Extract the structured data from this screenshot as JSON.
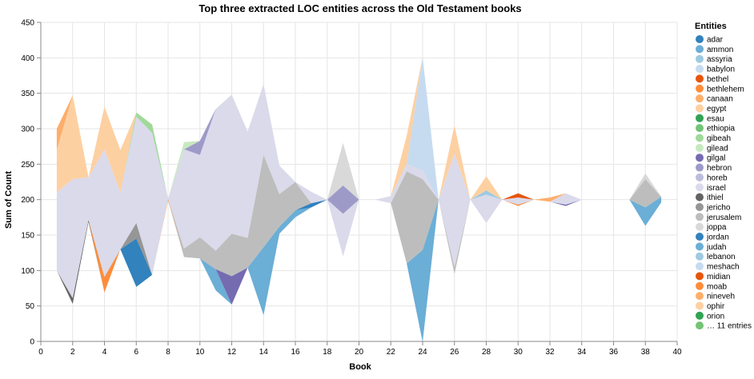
{
  "chart_data": {
    "type": "area",
    "title": "Top three extracted LOC entities across the Old Testament books",
    "xlabel": "Book",
    "ylabel": "Sum of Count",
    "xlim": [
      0,
      40
    ],
    "ylim": [
      0,
      450
    ],
    "x_ticks": [
      0,
      2,
      4,
      6,
      8,
      10,
      12,
      14,
      16,
      18,
      20,
      22,
      24,
      26,
      28,
      30,
      32,
      34,
      36,
      38,
      40
    ],
    "y_ticks": [
      0,
      50,
      100,
      150,
      200,
      250,
      300,
      350,
      400,
      450
    ],
    "grid": true,
    "stack": "center",
    "legend_position": "right",
    "legend_title": "Entities",
    "legend_entries": [
      {
        "label": "adar",
        "color": "#3182bd"
      },
      {
        "label": "ammon",
        "color": "#6baed6"
      },
      {
        "label": "assyria",
        "color": "#9ecae1"
      },
      {
        "label": "babylon",
        "color": "#c6dbef"
      },
      {
        "label": "bethel",
        "color": "#e6550d"
      },
      {
        "label": "bethlehem",
        "color": "#fd8d3c"
      },
      {
        "label": "canaan",
        "color": "#fdae6b"
      },
      {
        "label": "egypt",
        "color": "#fdd0a2"
      },
      {
        "label": "esau",
        "color": "#31a354"
      },
      {
        "label": "ethiopia",
        "color": "#74c476"
      },
      {
        "label": "gibeah",
        "color": "#a1d99b"
      },
      {
        "label": "gilead",
        "color": "#c7e9c0"
      },
      {
        "label": "gilgal",
        "color": "#756bb1"
      },
      {
        "label": "hebron",
        "color": "#9e9ac8"
      },
      {
        "label": "horeb",
        "color": "#bcbddc"
      },
      {
        "label": "israel",
        "color": "#dadaeb"
      },
      {
        "label": "ithiel",
        "color": "#636363"
      },
      {
        "label": "jericho",
        "color": "#969696"
      },
      {
        "label": "jerusalem",
        "color": "#bdbdbd"
      },
      {
        "label": "joppa",
        "color": "#d9d9d9"
      },
      {
        "label": "jordan",
        "color": "#3182bd"
      },
      {
        "label": "judah",
        "color": "#6baed6"
      },
      {
        "label": "lebanon",
        "color": "#9ecae1"
      },
      {
        "label": "meshach",
        "color": "#c6dbef"
      },
      {
        "label": "midian",
        "color": "#e6550d"
      },
      {
        "label": "moab",
        "color": "#fd8d3c"
      },
      {
        "label": "nineveh",
        "color": "#fdae6b"
      },
      {
        "label": "ophir",
        "color": "#fdd0a2"
      },
      {
        "label": "orion",
        "color": "#31a354"
      },
      {
        "label": "… 11 entries",
        "color": "#74c476"
      }
    ],
    "x": [
      1,
      2,
      3,
      4,
      5,
      6,
      7,
      8,
      9,
      10,
      11,
      12,
      13,
      14,
      15,
      16,
      17,
      18,
      19,
      20,
      21,
      22,
      23,
      24,
      25,
      26,
      27,
      28,
      29,
      30,
      31,
      32,
      33,
      34,
      35,
      36,
      37,
      38,
      39
    ],
    "series": [
      {
        "name": "ithiel",
        "color": "#636363",
        "values": [
          0,
          8,
          3,
          0,
          0,
          0,
          0,
          0,
          0,
          0,
          0,
          0,
          0,
          0,
          0,
          0,
          0,
          0,
          0,
          0,
          0,
          0,
          0,
          0,
          0,
          0,
          0,
          0,
          0,
          0,
          0,
          0,
          0,
          0,
          0,
          0,
          0,
          0,
          0
        ]
      },
      {
        "name": "moab",
        "color": "#fd8d3c",
        "values": [
          0,
          0,
          0,
          22,
          0,
          0,
          0,
          2,
          0,
          0,
          0,
          0,
          0,
          0,
          0,
          0,
          0,
          0,
          0,
          0,
          0,
          0,
          0,
          0,
          0,
          0,
          0,
          0,
          0,
          2,
          0,
          0,
          0,
          0,
          0,
          0,
          0,
          0,
          0
        ]
      },
      {
        "name": "judah",
        "color": "#6baed6",
        "values": [
          0,
          0,
          0,
          0,
          0,
          0,
          0,
          0,
          0,
          0,
          30,
          0,
          0,
          96,
          10,
          10,
          0,
          0,
          0,
          0,
          0,
          0,
          0,
          130,
          0,
          0,
          0,
          0,
          0,
          0,
          0,
          0,
          0,
          0,
          0,
          0,
          0,
          26,
          8
        ]
      },
      {
        "name": "jordan",
        "color": "#3182bd",
        "values": [
          0,
          0,
          0,
          0,
          0,
          68,
          0,
          0,
          0,
          0,
          0,
          0,
          0,
          0,
          0,
          0,
          6,
          0,
          0,
          0,
          0,
          0,
          0,
          0,
          0,
          0,
          0,
          0,
          0,
          0,
          0,
          0,
          0,
          0,
          0,
          0,
          0,
          0,
          0
        ]
      },
      {
        "name": "gilgal",
        "color": "#756bb1",
        "values": [
          0,
          0,
          0,
          0,
          0,
          0,
          0,
          0,
          0,
          0,
          0,
          40,
          0,
          0,
          0,
          0,
          0,
          0,
          0,
          0,
          0,
          0,
          0,
          0,
          0,
          0,
          0,
          0,
          0,
          0,
          0,
          0,
          2,
          0,
          0,
          0,
          0,
          0,
          0
        ]
      },
      {
        "name": "jericho",
        "color": "#969696",
        "values": [
          0,
          0,
          0,
          0,
          0,
          22,
          0,
          0,
          0,
          0,
          0,
          0,
          0,
          0,
          0,
          0,
          0,
          0,
          0,
          0,
          0,
          0,
          0,
          0,
          0,
          0,
          0,
          0,
          0,
          0,
          0,
          0,
          0,
          0,
          0,
          0,
          0,
          0,
          0
        ]
      },
      {
        "name": "jerusalem",
        "color": "#bdbdbd",
        "values": [
          0,
          0,
          0,
          0,
          0,
          0,
          0,
          0,
          12,
          30,
          26,
          60,
          42,
          130,
          46,
          40,
          0,
          0,
          0,
          0,
          0,
          0,
          130,
          100,
          0,
          10,
          0,
          0,
          0,
          0,
          0,
          0,
          0,
          0,
          0,
          0,
          0,
          40,
          0
        ]
      },
      {
        "name": "israel",
        "color": "#dadaeb",
        "values": [
          110,
          168,
          60,
          180,
          80,
          150,
          200,
          0,
          140,
          116,
          200,
          196,
          150,
          100,
          40,
          0,
          16,
          0,
          60,
          0,
          0,
          10,
          10,
          12,
          0,
          160,
          0,
          40,
          0,
          10,
          0,
          0,
          16,
          0,
          0,
          0,
          0,
          0,
          0
        ]
      },
      {
        "name": "hebron",
        "color": "#9e9ac8",
        "values": [
          0,
          0,
          0,
          0,
          0,
          0,
          0,
          0,
          0,
          20,
          0,
          0,
          0,
          0,
          0,
          0,
          0,
          0,
          40,
          0,
          0,
          0,
          0,
          0,
          0,
          0,
          0,
          0,
          0,
          0,
          0,
          0,
          0,
          0,
          0,
          0,
          0,
          0,
          0
        ]
      },
      {
        "name": "joppa",
        "color": "#d9d9d9",
        "values": [
          0,
          0,
          0,
          0,
          0,
          0,
          0,
          0,
          0,
          0,
          0,
          0,
          0,
          0,
          0,
          0,
          0,
          0,
          60,
          0,
          0,
          0,
          0,
          0,
          0,
          0,
          0,
          0,
          0,
          0,
          0,
          0,
          0,
          0,
          0,
          0,
          0,
          8,
          0
        ]
      },
      {
        "name": "meshach",
        "color": "#c6dbef",
        "values": [
          0,
          0,
          0,
          0,
          0,
          0,
          0,
          0,
          0,
          0,
          0,
          0,
          0,
          0,
          0,
          0,
          0,
          0,
          0,
          0,
          0,
          0,
          0,
          160,
          0,
          0,
          0,
          0,
          0,
          0,
          0,
          0,
          0,
          0,
          0,
          0,
          0,
          0,
          0
        ]
      },
      {
        "name": "assyria",
        "color": "#9ecae1",
        "values": [
          0,
          0,
          0,
          0,
          0,
          0,
          0,
          0,
          0,
          0,
          0,
          0,
          0,
          0,
          0,
          0,
          0,
          0,
          0,
          0,
          0,
          0,
          0,
          0,
          0,
          0,
          0,
          6,
          0,
          0,
          0,
          0,
          0,
          0,
          0,
          0,
          0,
          0,
          0
        ]
      },
      {
        "name": "gibeah",
        "color": "#a1d99b",
        "values": [
          0,
          0,
          0,
          0,
          0,
          6,
          12,
          0,
          0,
          0,
          0,
          0,
          0,
          0,
          0,
          0,
          0,
          0,
          0,
          0,
          0,
          0,
          0,
          0,
          0,
          0,
          0,
          0,
          0,
          0,
          0,
          0,
          0,
          0,
          0,
          0,
          0,
          0,
          0
        ]
      },
      {
        "name": "egypt",
        "color": "#fdd0a2",
        "values": [
          60,
          118,
          0,
          60,
          60,
          0,
          0,
          0,
          0,
          0,
          0,
          0,
          0,
          0,
          0,
          0,
          0,
          0,
          0,
          0,
          0,
          0,
          40,
          0,
          0,
          40,
          0,
          20,
          0,
          0,
          0,
          0,
          0,
          0,
          0,
          0,
          0,
          0,
          0
        ]
      },
      {
        "name": "canaan",
        "color": "#fdae6b",
        "values": [
          30,
          0,
          0,
          0,
          0,
          0,
          0,
          0,
          0,
          0,
          0,
          0,
          0,
          0,
          0,
          0,
          0,
          0,
          0,
          0,
          0,
          0,
          0,
          0,
          0,
          0,
          0,
          0,
          0,
          0,
          0,
          6,
          0,
          0,
          0,
          0,
          0,
          0,
          0
        ]
      },
      {
        "name": "bethel",
        "color": "#e6550d",
        "values": [
          0,
          0,
          0,
          0,
          0,
          0,
          0,
          0,
          0,
          0,
          0,
          0,
          0,
          0,
          0,
          0,
          0,
          0,
          0,
          0,
          0,
          0,
          0,
          0,
          0,
          0,
          0,
          0,
          0,
          6,
          0,
          0,
          0,
          0,
          0,
          0,
          0,
          0,
          0
        ]
      },
      {
        "name": "gilead",
        "color": "#c7e9c0",
        "values": [
          0,
          0,
          0,
          0,
          0,
          0,
          0,
          0,
          10,
          0,
          0,
          0,
          0,
          0,
          0,
          0,
          0,
          0,
          0,
          0,
          0,
          0,
          0,
          0,
          0,
          0,
          0,
          0,
          0,
          0,
          0,
          0,
          0,
          0,
          0,
          0,
          0,
          0,
          0
        ]
      }
    ]
  }
}
